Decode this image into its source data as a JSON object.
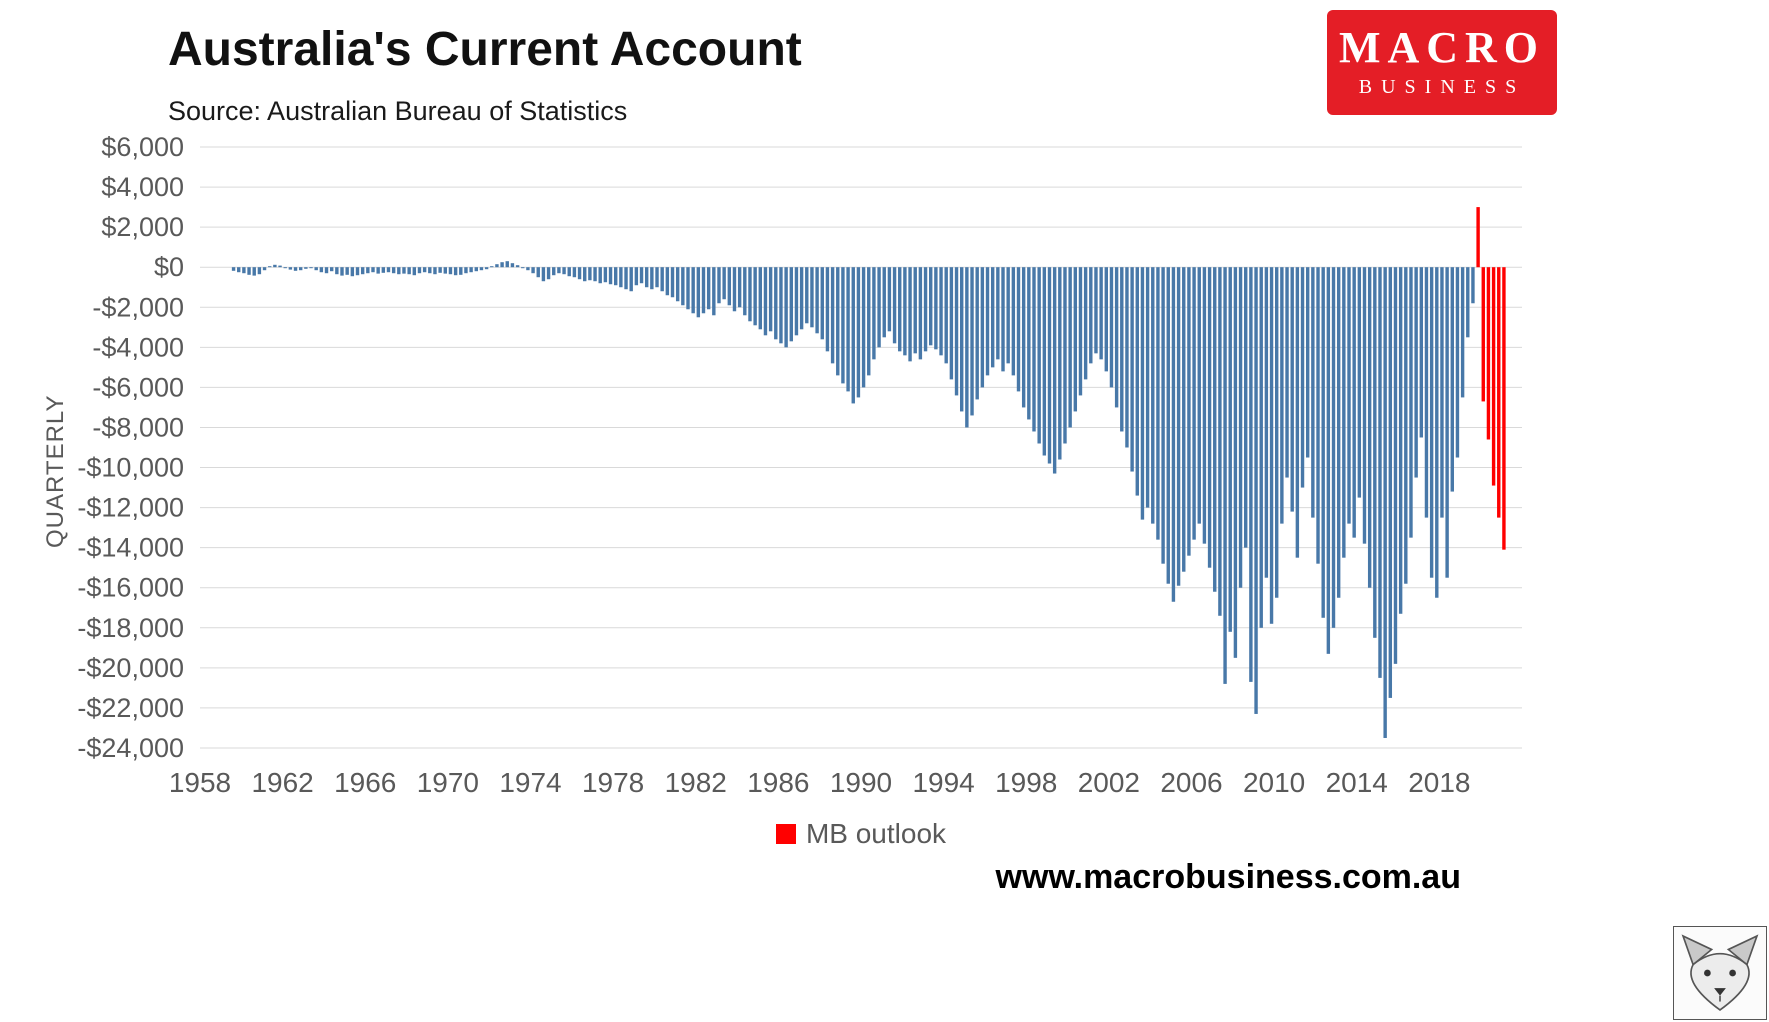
{
  "header": {
    "logo_line1": "MACRO",
    "logo_line2": "BUSINESS",
    "logo_color": "#e41e26"
  },
  "footer": {
    "url": "www.macrobusiness.com.au"
  },
  "chart_data": {
    "type": "bar",
    "title": "Australia's Current Account",
    "subtitle": "Source: Australian Bureau of Statistics",
    "ylabel": "QUARTERLY",
    "legend_label": "MB outlook",
    "frequency": "quarterly",
    "start_quarter": "1959-Q3",
    "start_year_fraction": 1959.625,
    "ylim": [
      -24000,
      6000
    ],
    "ytick_step": 2000,
    "x_domain": [
      1958,
      2022
    ],
    "x_tick_years": [
      1958,
      1962,
      1966,
      1970,
      1974,
      1978,
      1982,
      1986,
      1990,
      1994,
      1998,
      2002,
      2006,
      2010,
      2014,
      2018
    ],
    "grid_on": true,
    "grid_color": "#d9d9d9",
    "axis_text_color": "#595959",
    "bar_color": "#4878a8",
    "outlook_color": "#ff0000",
    "values": [
      -180,
      -250,
      -300,
      -380,
      -420,
      -350,
      -150,
      50,
      120,
      80,
      -50,
      -120,
      -180,
      -150,
      -80,
      -40,
      -150,
      -250,
      -300,
      -200,
      -350,
      -420,
      -380,
      -450,
      -400,
      -350,
      -300,
      -250,
      -320,
      -280,
      -250,
      -300,
      -350,
      -320,
      -350,
      -400,
      -300,
      -250,
      -300,
      -350,
      -280,
      -320,
      -350,
      -400,
      -380,
      -300,
      -250,
      -200,
      -150,
      -100,
      50,
      150,
      250,
      300,
      200,
      100,
      -50,
      -150,
      -300,
      -500,
      -700,
      -600,
      -400,
      -300,
      -350,
      -450,
      -500,
      -600,
      -700,
      -650,
      -700,
      -800,
      -750,
      -850,
      -900,
      -1000,
      -1100,
      -1200,
      -900,
      -800,
      -1000,
      -1100,
      -1000,
      -1200,
      -1400,
      -1500,
      -1700,
      -1900,
      -2100,
      -2300,
      -2500,
      -2300,
      -2100,
      -2400,
      -1800,
      -1600,
      -1900,
      -2200,
      -2000,
      -2400,
      -2700,
      -2900,
      -3100,
      -3400,
      -3200,
      -3600,
      -3800,
      -4000,
      -3700,
      -3400,
      -3100,
      -2800,
      -3000,
      -3300,
      -3600,
      -4200,
      -4800,
      -5400,
      -5800,
      -6200,
      -6800,
      -6500,
      -6000,
      -5400,
      -4600,
      -4000,
      -3500,
      -3200,
      -3800,
      -4200,
      -4400,
      -4700,
      -4300,
      -4600,
      -4200,
      -3900,
      -4100,
      -4400,
      -4800,
      -5600,
      -6400,
      -7200,
      -8000,
      -7400,
      -6600,
      -6000,
      -5400,
      -5000,
      -4600,
      -5200,
      -4800,
      -5400,
      -6200,
      -7000,
      -7600,
      -8200,
      -8800,
      -9400,
      -9800,
      -10300,
      -9600,
      -8800,
      -8000,
      -7200,
      -6400,
      -5600,
      -4800,
      -4300,
      -4600,
      -5200,
      -6000,
      -7000,
      -8200,
      -9000,
      -10200,
      -11400,
      -12600,
      -12000,
      -12800,
      -13600,
      -14800,
      -15800,
      -16700,
      -15900,
      -15200,
      -14400,
      -13600,
      -12800,
      -13800,
      -15000,
      -16200,
      -17400,
      -20800,
      -18200,
      -19500,
      -16000,
      -14000,
      -20700,
      -22300,
      -18000,
      -15500,
      -17800,
      -16500,
      -12800,
      -10500,
      -12200,
      -14500,
      -11000,
      -9500,
      -12500,
      -14800,
      -17500,
      -19300,
      -18000,
      -16500,
      -14500,
      -12800,
      -13500,
      -11500,
      -13800,
      -16000,
      -18500,
      -20500,
      -23500,
      -21500,
      -19800,
      -17300,
      -15800,
      -13500,
      -10500,
      -8500,
      -12500,
      -15500,
      -16500,
      -12500,
      -15500,
      -11200,
      -9500,
      -6500,
      -3500,
      -1800
    ],
    "outlook": [
      3000,
      -6700,
      -8600,
      -10900,
      -12500,
      -14100
    ]
  }
}
